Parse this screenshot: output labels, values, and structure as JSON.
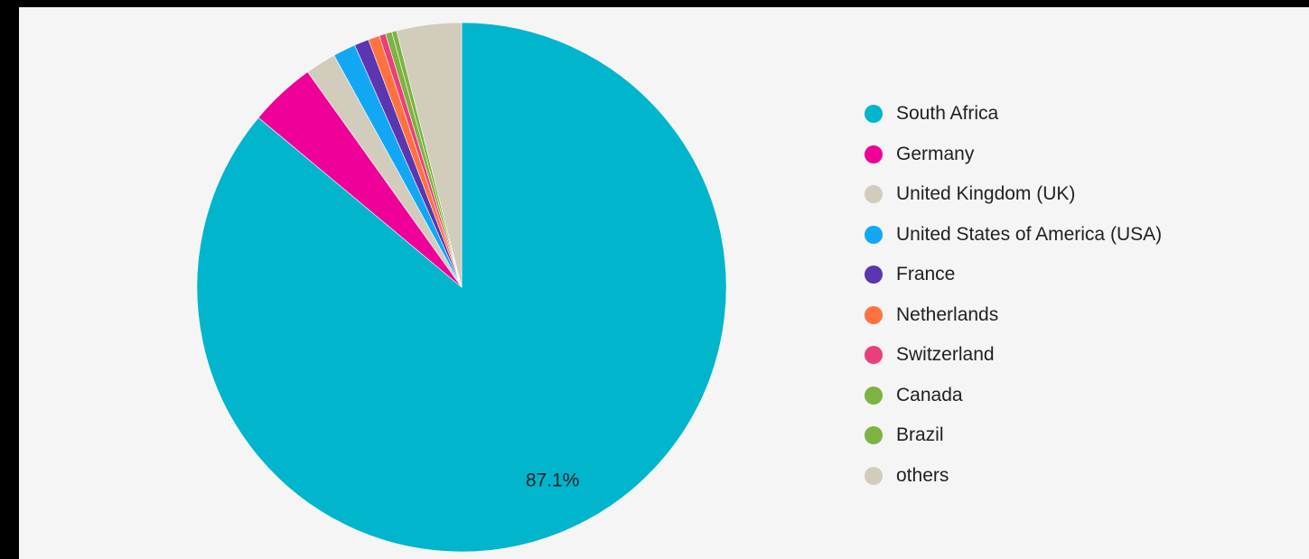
{
  "chart_data": {
    "type": "pie",
    "title": "",
    "slices": [
      {
        "label": "South Africa",
        "value": 87.1,
        "color": "#00b5cc",
        "display": "87.1%"
      },
      {
        "label": "Germany",
        "value": 4.1,
        "color": "#ee0099"
      },
      {
        "label": "United Kingdom (UK)",
        "value": 1.9,
        "color": "#d2ccbc"
      },
      {
        "label": "United States of America (USA)",
        "value": 1.4,
        "color": "#12a7f5"
      },
      {
        "label": "France",
        "value": 0.9,
        "color": "#5c35b0"
      },
      {
        "label": "Netherlands",
        "value": 0.7,
        "color": "#ff7240"
      },
      {
        "label": "Switzerland",
        "value": 0.4,
        "color": "#eb3f79"
      },
      {
        "label": "Canada",
        "value": 0.4,
        "color": "#7cb342"
      },
      {
        "label": "Brazil",
        "value": 0.3,
        "color": "#7cb342"
      },
      {
        "label": "others",
        "value": 4.0,
        "color": "#d2ccbc"
      }
    ],
    "start": "12 o'clock",
    "direction": "clockwise",
    "legend_position": "right"
  }
}
